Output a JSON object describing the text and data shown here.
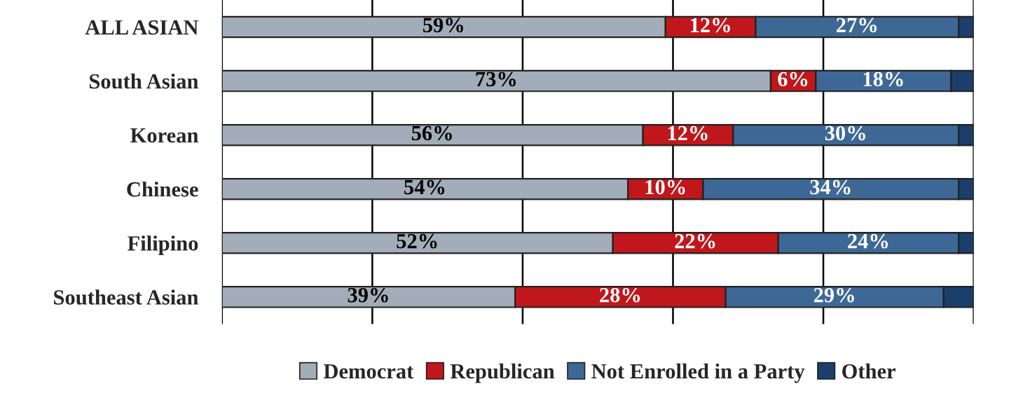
{
  "chart_data": {
    "type": "bar",
    "orientation": "horizontal",
    "stacked": true,
    "categories": [
      "ALL ASIAN",
      "South Asian",
      "Korean",
      "Chinese",
      "Filipino",
      "Southeast Asian"
    ],
    "series": [
      {
        "name": "Democrat",
        "color": "#a2adb9",
        "values": [
          59,
          73,
          56,
          54,
          52,
          39
        ],
        "value_labels": [
          "59%",
          "73%",
          "56%",
          "54%",
          "52%",
          "39%"
        ]
      },
      {
        "name": "Republican",
        "color": "#c0171c",
        "values": [
          12,
          6,
          12,
          10,
          22,
          28
        ],
        "value_labels": [
          "12%",
          "6%",
          "12%",
          "10%",
          "22%",
          "28%"
        ]
      },
      {
        "name": "Not Enrolled in a Party",
        "color": "#3d6896",
        "values": [
          27,
          18,
          30,
          34,
          24,
          29
        ],
        "value_labels": [
          "27%",
          "18%",
          "30%",
          "34%",
          "24%",
          "29%"
        ]
      },
      {
        "name": "Other",
        "color": "#1b3f6a",
        "values": [
          2,
          3,
          2,
          2,
          2,
          4
        ]
      }
    ],
    "xlim": [
      0,
      100
    ],
    "xticks": [
      {
        "value": 0,
        "label": null
      },
      {
        "value": 20,
        "label": null
      },
      {
        "value": 40,
        "label": null
      },
      {
        "value": 60,
        "label": null
      },
      {
        "value": 80,
        "label": null
      },
      {
        "value": 100,
        "label": null
      }
    ],
    "grid": "x",
    "legend": "bottom"
  }
}
